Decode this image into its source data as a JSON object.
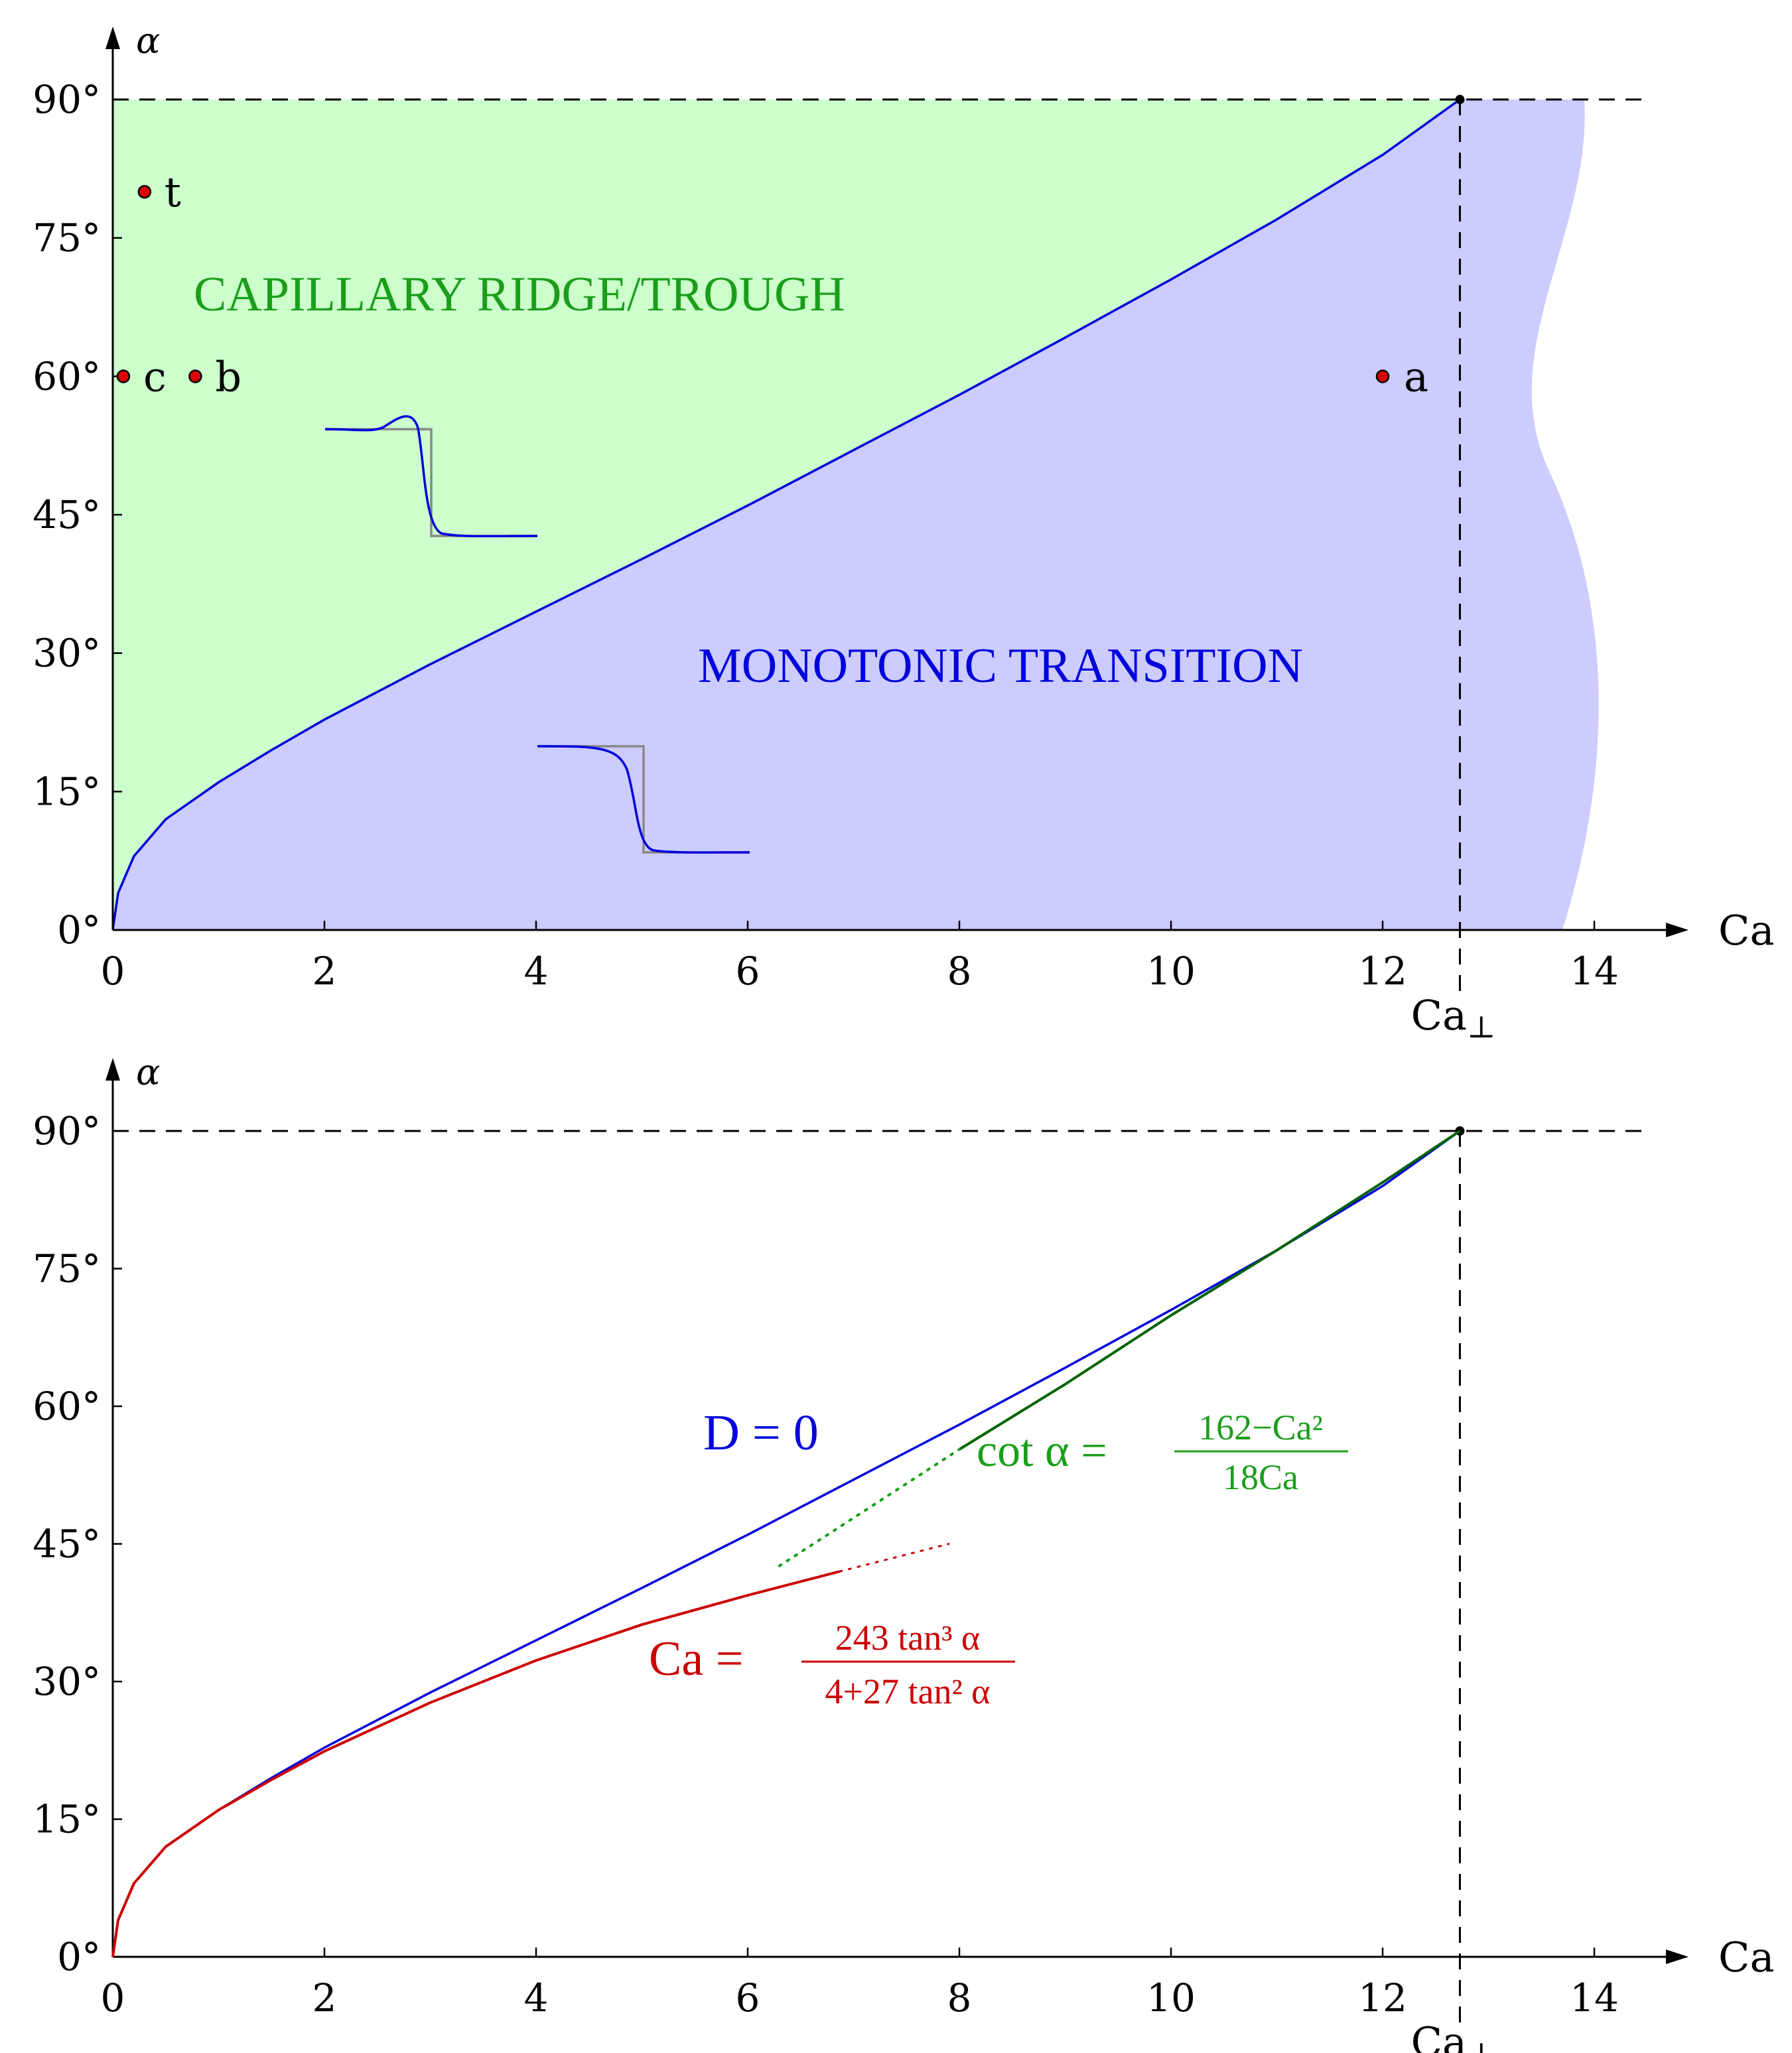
{
  "colors": {
    "green_region": "#ccffcc",
    "blue_region": "#ccccff",
    "boundary_curve": "#0000dd",
    "green_text": "#1a9e1a",
    "blue_text": "#0000dd",
    "red_curve": "#cc0000",
    "dark_green_curve": "#006400",
    "point_fill": "#dd0000"
  },
  "chart_data": [
    {
      "type": "line",
      "title": "",
      "xlabel": "Ca",
      "ylabel": "α",
      "xlim": [
        0,
        15
      ],
      "ylim": [
        0,
        90
      ],
      "xticks": [
        0,
        2,
        4,
        6,
        8,
        10,
        12,
        14
      ],
      "xtick_labels": [
        "0",
        "2",
        "4",
        "6",
        "8",
        "10",
        "12",
        "14"
      ],
      "yticks": [
        0,
        15,
        30,
        45,
        60,
        75,
        90
      ],
      "ytick_labels": [
        "0°",
        "15°",
        "30°",
        "45°",
        "60°",
        "75°",
        "90°"
      ],
      "ca_perp": 12.73,
      "ca_perp_label": "Ca⊥",
      "regions": [
        {
          "label": "CAPILLARY RIDGE/TROUGH"
        },
        {
          "label": "MONOTONIC TRANSITION"
        }
      ],
      "boundary": {
        "name": "",
        "x": [
          0,
          0.05,
          0.2,
          0.5,
          1,
          1.5,
          2,
          3,
          4,
          5,
          6,
          7,
          8,
          9,
          10,
          11,
          12,
          12.73
        ],
        "y": [
          0,
          4.0,
          8.0,
          12.0,
          16.0,
          19.5,
          22.8,
          28.8,
          34.5,
          40.2,
          46.0,
          52.0,
          58.0,
          64.2,
          70.5,
          77.0,
          84.0,
          90
        ]
      },
      "points": [
        {
          "label": "t",
          "x": 0.3,
          "y": 80
        },
        {
          "label": "c",
          "x": 0.1,
          "y": 60
        },
        {
          "label": "b",
          "x": 0.78,
          "y": 60
        },
        {
          "label": "a",
          "x": 12.0,
          "y": 60
        }
      ]
    },
    {
      "type": "line",
      "title": "",
      "xlabel": "Ca",
      "ylabel": "α",
      "xlim": [
        0,
        15
      ],
      "ylim": [
        0,
        90
      ],
      "xticks": [
        0,
        2,
        4,
        6,
        8,
        10,
        12,
        14
      ],
      "xtick_labels": [
        "0",
        "2",
        "4",
        "6",
        "8",
        "10",
        "12",
        "14"
      ],
      "yticks": [
        0,
        15,
        30,
        45,
        60,
        75,
        90
      ],
      "ytick_labels": [
        "0°",
        "15°",
        "30°",
        "45°",
        "60°",
        "75°",
        "90°"
      ],
      "ca_perp": 12.73,
      "ca_perp_label": "Ca⊥",
      "series": [
        {
          "name": "D = 0",
          "x": [
            0,
            0.05,
            0.2,
            0.5,
            1,
            1.5,
            2,
            3,
            4,
            5,
            6,
            7,
            8,
            9,
            10,
            11,
            12,
            12.73
          ],
          "y": [
            0,
            4.0,
            8.0,
            12.0,
            16.0,
            19.5,
            22.8,
            28.8,
            34.5,
            40.2,
            46.0,
            52.0,
            58.0,
            64.2,
            70.5,
            77.0,
            84.0,
            90
          ]
        },
        {
          "name": "Ca = 243 tan³ α / (4+27 tan² α)",
          "x": [
            0,
            0.05,
            0.2,
            0.5,
            1,
            1.5,
            2,
            3,
            4,
            5,
            6,
            6.87
          ],
          "y": [
            0,
            4.0,
            8.0,
            12.0,
            16.0,
            19.3,
            22.4,
            27.7,
            32.3,
            36.2,
            39.4,
            42.0
          ],
          "dotted_x": [
            6.87,
            7.9
          ],
          "dotted_y": [
            42.0,
            45.0
          ]
        },
        {
          "name": "cot α = (162 − Ca²) / 18Ca",
          "x": [
            8,
            9,
            10,
            11,
            12,
            12.73
          ],
          "y": [
            55.3,
            62.4,
            69.9,
            77.0,
            84.4,
            90
          ],
          "dotted_x": [
            6.3,
            8.0
          ],
          "dotted_y": [
            42.6,
            55.3
          ]
        }
      ],
      "labels": {
        "blue": "D = 0",
        "green_lhs": "cot α =",
        "green_num": "162−Ca²",
        "green_den": "18Ca",
        "red_lhs": "Ca =",
        "red_num": "243 tan³ α",
        "red_den": "4+27 tan² α"
      }
    }
  ]
}
